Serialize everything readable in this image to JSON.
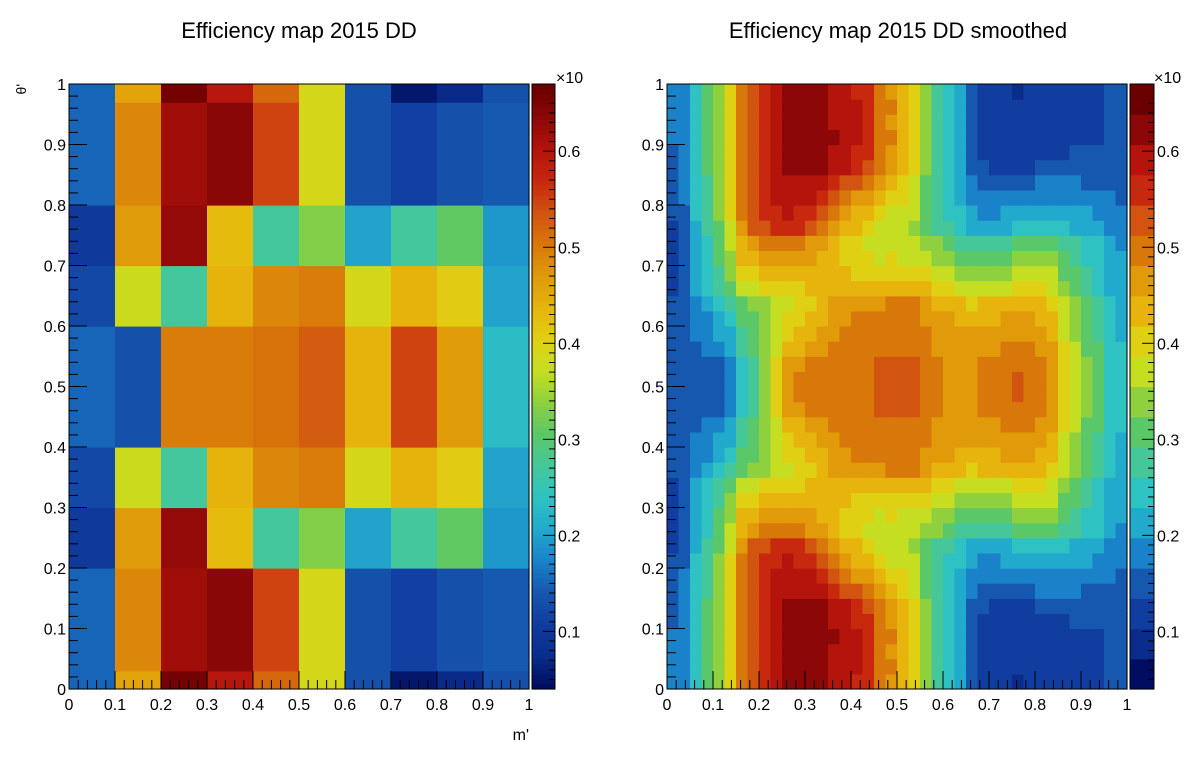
{
  "chart_data": [
    {
      "type": "heatmap",
      "title": "Efficiency map 2015 DD",
      "xlabel": "m'",
      "ylabel": "θ'",
      "xlim": [
        0,
        1
      ],
      "ylim": [
        0,
        1
      ],
      "x_ticks": [
        "0",
        "0.1",
        "0.2",
        "0.3",
        "0.4",
        "0.5",
        "0.6",
        "0.7",
        "0.8",
        "0.9",
        "1"
      ],
      "y_ticks": [
        "0",
        "0.1",
        "0.2",
        "0.3",
        "0.4",
        "0.5",
        "0.6",
        "0.7",
        "0.8",
        "0.9",
        "1"
      ],
      "x_edges": [
        0,
        0.1,
        0.2,
        0.3,
        0.4,
        0.5,
        0.6,
        0.7,
        0.8,
        0.9,
        1.0
      ],
      "y_edges": [
        0,
        0.03,
        0.2,
        0.3,
        0.4,
        0.6,
        0.7,
        0.8,
        0.97,
        1.0
      ],
      "z_rows_bottom_to_top": [
        [
          0.15,
          0.46,
          0.66,
          0.6,
          0.52,
          0.39,
          0.13,
          0.05,
          0.07,
          0.13
        ],
        [
          0.15,
          0.49,
          0.62,
          0.64,
          0.55,
          0.39,
          0.13,
          0.11,
          0.13,
          0.14
        ],
        [
          0.1,
          0.47,
          0.63,
          0.43,
          0.27,
          0.33,
          0.2,
          0.27,
          0.31,
          0.19
        ],
        [
          0.12,
          0.38,
          0.27,
          0.44,
          0.49,
          0.5,
          0.39,
          0.44,
          0.41,
          0.2
        ],
        [
          0.15,
          0.13,
          0.5,
          0.5,
          0.51,
          0.53,
          0.44,
          0.55,
          0.47,
          0.23
        ],
        [
          0.12,
          0.38,
          0.27,
          0.44,
          0.49,
          0.5,
          0.39,
          0.44,
          0.41,
          0.2
        ],
        [
          0.1,
          0.47,
          0.63,
          0.43,
          0.27,
          0.33,
          0.2,
          0.27,
          0.31,
          0.19
        ],
        [
          0.15,
          0.49,
          0.62,
          0.64,
          0.55,
          0.39,
          0.13,
          0.11,
          0.13,
          0.14
        ],
        [
          0.15,
          0.46,
          0.66,
          0.6,
          0.52,
          0.39,
          0.13,
          0.05,
          0.07,
          0.13
        ]
      ],
      "zlim": [
        0.04,
        0.67
      ],
      "colorbar_ticks": [
        "0.1",
        "0.2",
        "0.3",
        "0.4",
        "0.5",
        "0.6"
      ],
      "colorbar_exponent": "×10",
      "palette": "continuous"
    },
    {
      "type": "heatmap",
      "title": "Efficiency map 2015 DD smoothed",
      "xlabel": "",
      "ylabel": "",
      "xlim": [
        0,
        1
      ],
      "ylim": [
        0,
        1
      ],
      "x_ticks": [
        "0",
        "0.1",
        "0.2",
        "0.3",
        "0.4",
        "0.5",
        "0.6",
        "0.7",
        "0.8",
        "0.9",
        "1"
      ],
      "y_ticks": [
        "0",
        "0.1",
        "0.2",
        "0.3",
        "0.4",
        "0.5",
        "0.6",
        "0.7",
        "0.8",
        "0.9",
        "1"
      ],
      "grid_resolution": [
        40,
        40
      ],
      "smoothing_of": "Efficiency map 2015 DD",
      "zlim": [
        0.04,
        0.67
      ],
      "colorbar_ticks": [
        "0.1",
        "0.2",
        "0.3",
        "0.4",
        "0.5",
        "0.6"
      ],
      "colorbar_exponent": "×10",
      "palette": "discrete",
      "palette_levels": 20
    }
  ],
  "palette_colors": [
    "#000d60",
    "#0a2d8c",
    "#113ca0",
    "#1658b0",
    "#1a82c8",
    "#22aacc",
    "#2fc2c2",
    "#45c79a",
    "#5ac868",
    "#8ed03e",
    "#c5de22",
    "#e0d014",
    "#e6b40c",
    "#e09a0a",
    "#d8780a",
    "#d15410",
    "#c8280e",
    "#b4140c",
    "#8c0808",
    "#6a0000"
  ]
}
